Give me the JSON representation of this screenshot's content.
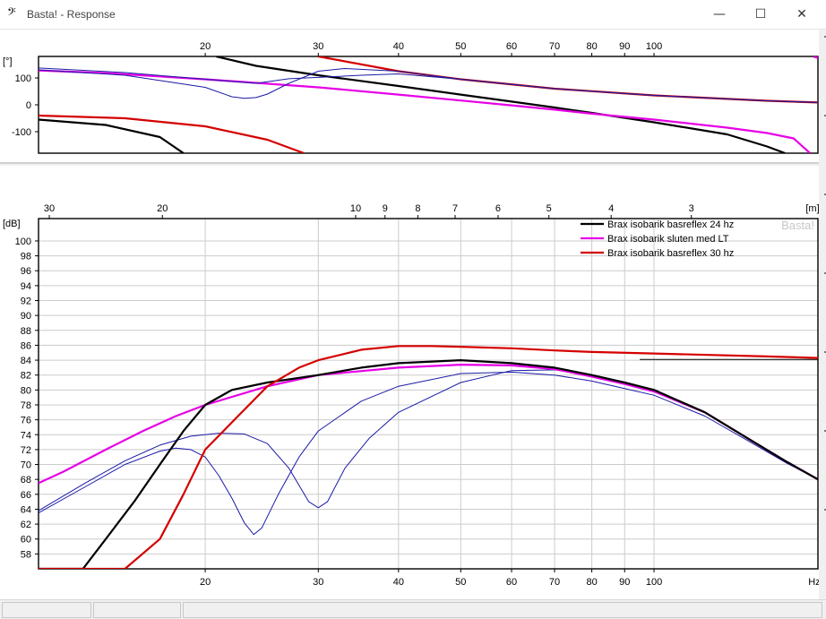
{
  "window": {
    "icon": "bass-clef-icon",
    "title": "Basta! - Response",
    "controls": {
      "minimize": "—",
      "maximize": "☐",
      "close": "✕"
    }
  },
  "colors": {
    "black_series": "#000000",
    "magenta_series": "#e600e6",
    "red_series": "#d40000",
    "blue_components": "#1a1aa6",
    "grid": "#cccccc"
  },
  "chart_data": [
    {
      "type": "line",
      "title": "",
      "ylabel": "[°]",
      "x_scale": "log",
      "xlim": [
        11,
        180
      ],
      "ylim": [
        -180,
        180
      ],
      "x_ticks": [
        20,
        30,
        40,
        50,
        60,
        70,
        80,
        90,
        100
      ],
      "x_tick_labels": [
        "20",
        "30",
        "40",
        "50",
        "60",
        "70",
        "80",
        "90",
        "100"
      ],
      "y_ticks": [
        100,
        0,
        -100
      ],
      "y_tick_labels": [
        "100",
        "0",
        "-100"
      ],
      "grid": false,
      "series": [
        {
          "color": "black",
          "width": 2.2,
          "segments": [
            [
              [
                11,
                -55
              ],
              [
                14,
                -75
              ],
              [
                17,
                -120
              ],
              [
                18.5,
                -180
              ]
            ],
            [
              [
                20.8,
                180
              ],
              [
                24,
                145
              ],
              [
                30,
                110
              ],
              [
                40,
                70
              ],
              [
                50,
                38
              ],
              [
                60,
                12
              ],
              [
                70,
                -10
              ],
              [
                80,
                -30
              ],
              [
                100,
                -65
              ],
              [
                130,
                -110
              ],
              [
                150,
                -155
              ],
              [
                160,
                -180
              ]
            ],
            [
              [
                177,
                180
              ],
              [
                200,
                140
              ]
            ]
          ]
        },
        {
          "color": "magenta",
          "width": 2.2,
          "segments": [
            [
              [
                11,
                128
              ],
              [
                14,
                118
              ],
              [
                20,
                95
              ],
              [
                30,
                65
              ],
              [
                40,
                38
              ],
              [
                50,
                16
              ],
              [
                60,
                -2
              ],
              [
                70,
                -18
              ],
              [
                80,
                -33
              ],
              [
                100,
                -55
              ],
              [
                130,
                -85
              ],
              [
                150,
                -105
              ],
              [
                165,
                -125
              ],
              [
                175,
                -180
              ]
            ],
            [
              [
                177,
                180
              ],
              [
                200,
                140
              ]
            ]
          ]
        },
        {
          "color": "red",
          "width": 2.2,
          "segments": [
            [
              [
                11,
                -40
              ],
              [
                15,
                -50
              ],
              [
                20,
                -80
              ],
              [
                25,
                -130
              ],
              [
                28.5,
                -180
              ]
            ],
            [
              [
                30,
                180
              ],
              [
                40,
                125
              ],
              [
                50,
                95
              ],
              [
                70,
                60
              ],
              [
                100,
                35
              ],
              [
                150,
                15
              ],
              [
                200,
                5
              ]
            ]
          ]
        },
        {
          "color": "blue",
          "width": 1,
          "segments": [
            [
              [
                11,
                137
              ],
              [
                15,
                120
              ],
              [
                20,
                95
              ],
              [
                24,
                80
              ],
              [
                25,
                86
              ],
              [
                27,
                97
              ],
              [
                30,
                102
              ],
              [
                35,
                110
              ],
              [
                40,
                115
              ],
              [
                50,
                95
              ],
              [
                70,
                60
              ],
              [
                100,
                35
              ],
              [
                150,
                15
              ],
              [
                200,
                5
              ]
            ]
          ]
        },
        {
          "color": "blue",
          "width": 1,
          "segments": [
            [
              [
                11,
                130
              ],
              [
                15,
                110
              ],
              [
                20,
                65
              ],
              [
                22,
                30
              ],
              [
                23,
                24
              ],
              [
                24,
                27
              ],
              [
                25,
                40
              ],
              [
                27,
                80
              ],
              [
                30,
                125
              ],
              [
                33,
                135
              ],
              [
                40,
                125
              ],
              [
                50,
                95
              ],
              [
                70,
                60
              ],
              [
                100,
                35
              ],
              [
                150,
                15
              ],
              [
                200,
                5
              ]
            ]
          ]
        }
      ]
    },
    {
      "type": "line",
      "title": "",
      "ylabel": "[dB]",
      "xlabel": "Hz",
      "x_scale": "log",
      "xlim": [
        11,
        180
      ],
      "ylim": [
        56,
        103
      ],
      "x_ticks": [
        20,
        30,
        40,
        50,
        60,
        70,
        80,
        90,
        100
      ],
      "x_tick_labels": [
        "20",
        "30",
        "40",
        "50",
        "60",
        "70",
        "80",
        "90",
        "100"
      ],
      "y_ticks": [
        58,
        60,
        62,
        64,
        66,
        68,
        70,
        72,
        74,
        76,
        78,
        80,
        82,
        84,
        86,
        88,
        90,
        92,
        94,
        96,
        98,
        100
      ],
      "y_tick_labels": [
        "58",
        "60",
        "62",
        "64",
        "66",
        "68",
        "70",
        "72",
        "74",
        "76",
        "78",
        "80",
        "82",
        "84",
        "86",
        "88",
        "90",
        "92",
        "94",
        "96",
        "98",
        "100"
      ],
      "grid": true,
      "top_axis": {
        "label": "[m]",
        "ticks": [
          30,
          20,
          10,
          9,
          8,
          7,
          6,
          5,
          4,
          3
        ],
        "tick_labels": [
          "30",
          "20",
          "10",
          "9",
          "8",
          "7",
          "6",
          "5",
          "4",
          "3"
        ]
      },
      "legend": {
        "placement": "top-right",
        "watermark": "Basta!",
        "entries": [
          {
            "label": "Brax isobarik basreflex 24 hz",
            "color": "black"
          },
          {
            "label": "Brax isobarik sluten med LT",
            "color": "magenta"
          },
          {
            "label": "Brax isobarik basreflex 30 hz",
            "color": "red"
          }
        ]
      },
      "series": [
        {
          "name": "Brax isobarik basreflex 24 hz",
          "color": "black",
          "width": 2.2,
          "points": [
            [
              11,
              56
            ],
            [
              12.9,
              56
            ],
            [
              14,
              60
            ],
            [
              15.5,
              65
            ],
            [
              17,
              70
            ],
            [
              18.5,
              74.5
            ],
            [
              20,
              78
            ],
            [
              22,
              80
            ],
            [
              25,
              81
            ],
            [
              30,
              82
            ],
            [
              35,
              83
            ],
            [
              40,
              83.6
            ],
            [
              50,
              84
            ],
            [
              60,
              83.6
            ],
            [
              70,
              83
            ],
            [
              80,
              82
            ],
            [
              90,
              81
            ],
            [
              100,
              80
            ],
            [
              120,
              77
            ],
            [
              140,
              73.5
            ],
            [
              160,
              70.5
            ],
            [
              180,
              68
            ]
          ]
        },
        {
          "name": "Brax isobarik sluten med LT",
          "color": "magenta",
          "width": 2.2,
          "points": [
            [
              11,
              67.5
            ],
            [
              12,
              69
            ],
            [
              14,
              72
            ],
            [
              16,
              74.5
            ],
            [
              18,
              76.5
            ],
            [
              20,
              78
            ],
            [
              25,
              80.5
            ],
            [
              30,
              82
            ],
            [
              40,
              83
            ],
            [
              50,
              83.4
            ],
            [
              60,
              83.3
            ],
            [
              70,
              82.8
            ],
            [
              80,
              81.8
            ],
            [
              90,
              80.8
            ],
            [
              100,
              79.8
            ],
            [
              120,
              77
            ],
            [
              140,
              73.5
            ],
            [
              160,
              70.5
            ],
            [
              180,
              68
            ]
          ]
        },
        {
          "name": "Brax isobarik basreflex 30 hz",
          "color": "red",
          "width": 2.2,
          "points": [
            [
              11,
              56
            ],
            [
              15,
              56
            ],
            [
              17,
              60
            ],
            [
              18.5,
              66
            ],
            [
              20,
              72
            ],
            [
              22.5,
              76.5
            ],
            [
              25,
              80.5
            ],
            [
              28,
              83
            ],
            [
              30,
              84
            ],
            [
              35,
              85.4
            ],
            [
              40,
              85.9
            ],
            [
              45,
              85.9
            ],
            [
              50,
              85.8
            ],
            [
              60,
              85.6
            ],
            [
              70,
              85.3
            ],
            [
              80,
              85.1
            ],
            [
              100,
              84.9
            ],
            [
              150,
              84.5
            ],
            [
              180,
              84.3
            ]
          ]
        },
        {
          "color": "blue",
          "width": 1,
          "points": [
            [
              11,
              63.5
            ],
            [
              13,
              67
            ],
            [
              15,
              70
            ],
            [
              17,
              71.8
            ],
            [
              18,
              72.2
            ],
            [
              19,
              72
            ],
            [
              20,
              71
            ],
            [
              21,
              68.5
            ],
            [
              22,
              65.5
            ],
            [
              23,
              62.2
            ],
            [
              23.8,
              60.6
            ],
            [
              24.5,
              61.5
            ],
            [
              26,
              66
            ],
            [
              28,
              71
            ],
            [
              30,
              74.5
            ],
            [
              35,
              78.5
            ],
            [
              40,
              80.5
            ],
            [
              50,
              82.2
            ],
            [
              60,
              82.4
            ],
            [
              70,
              82
            ],
            [
              80,
              81.2
            ],
            [
              90,
              80.2
            ],
            [
              100,
              79.3
            ],
            [
              120,
              76.5
            ],
            [
              140,
              73.2
            ],
            [
              160,
              70.3
            ],
            [
              180,
              68
            ]
          ]
        },
        {
          "color": "blue",
          "width": 1,
          "points": [
            [
              11,
              63.8
            ],
            [
              13,
              67.5
            ],
            [
              15,
              70.5
            ],
            [
              17,
              72.6
            ],
            [
              19,
              73.8
            ],
            [
              21,
              74.2
            ],
            [
              23,
              74.1
            ],
            [
              25,
              72.8
            ],
            [
              27,
              69.5
            ],
            [
              29,
              65
            ],
            [
              30,
              64.2
            ],
            [
              31,
              65
            ],
            [
              33,
              69.5
            ],
            [
              36,
              73.5
            ],
            [
              40,
              77
            ],
            [
              50,
              81
            ],
            [
              60,
              82.6
            ],
            [
              70,
              82.7
            ],
            [
              80,
              82
            ],
            [
              90,
              81
            ],
            [
              100,
              80
            ],
            [
              120,
              77
            ],
            [
              140,
              73.4
            ],
            [
              160,
              70.4
            ],
            [
              180,
              68
            ]
          ]
        },
        {
          "color": "black",
          "width": 1,
          "points": [
            [
              95,
              84.1
            ],
            [
              120,
              84.1
            ],
            [
              150,
              84.1
            ],
            [
              180,
              84.1
            ]
          ]
        }
      ]
    }
  ]
}
